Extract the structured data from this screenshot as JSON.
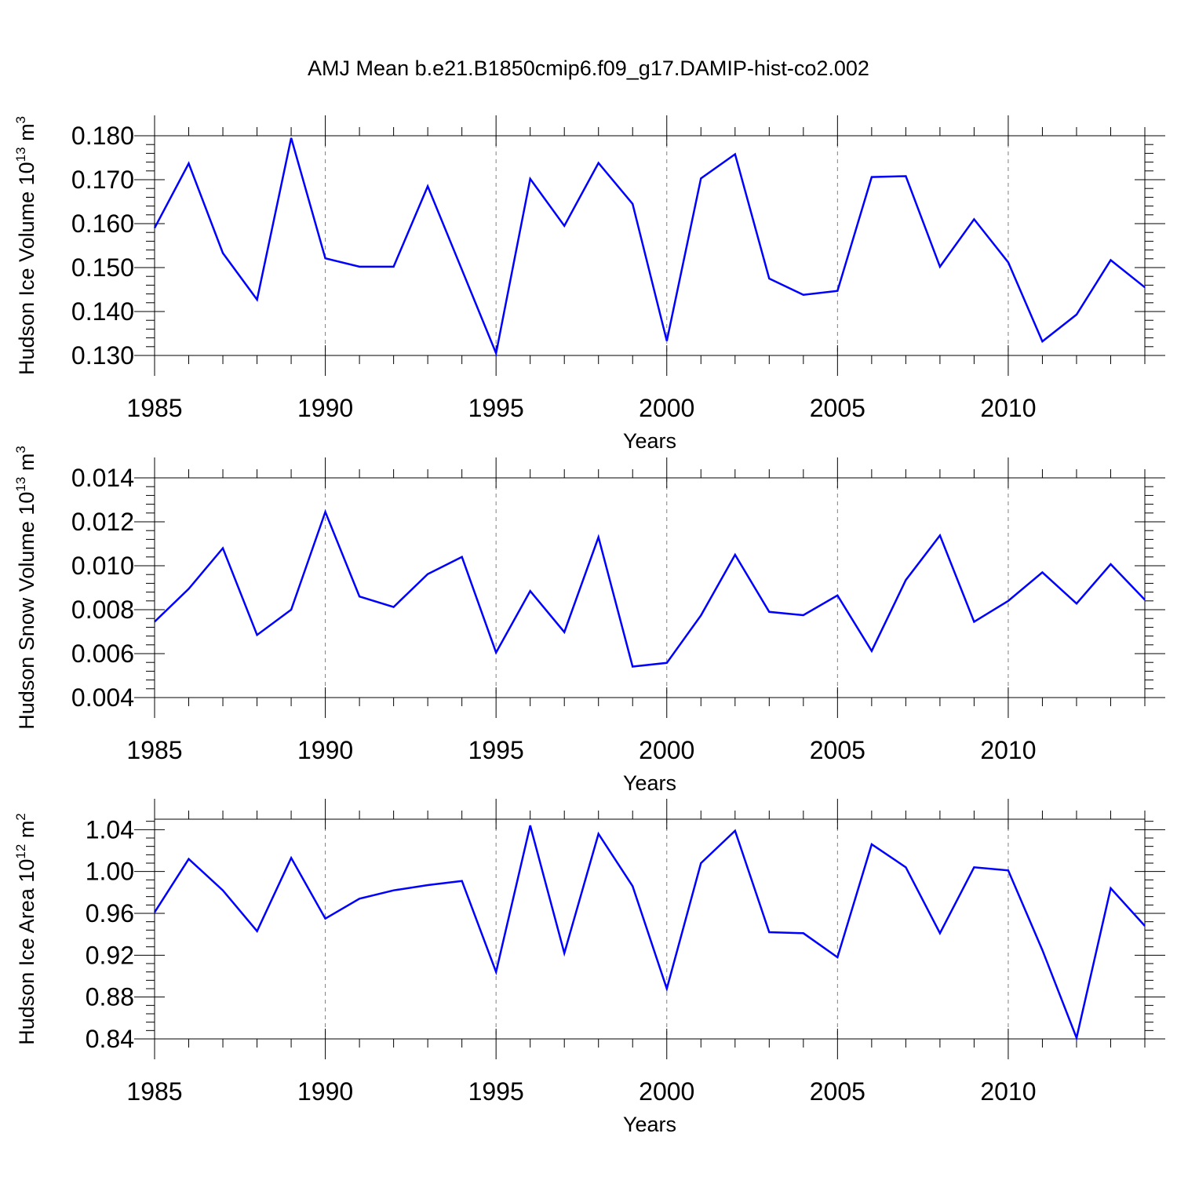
{
  "title": "AMJ Mean b.e21.B1850cmip6.f09_g17.DAMIP-hist-co2.002",
  "colors": {
    "line": "#0000ff",
    "axis": "#000000",
    "grid": "#808080"
  },
  "chart_data": [
    {
      "type": "line",
      "ylabel_main": "Hudson Ice Volume 10",
      "ylabel_exp": "13",
      "ylabel_unit": "m",
      "ylabel_unit_exp": "3",
      "xlabel": "Years",
      "xlim": [
        1985,
        2014
      ],
      "ylim": [
        0.13,
        0.18
      ],
      "x_ticks": [
        "1985",
        "1990",
        "1995",
        "2000",
        "2005",
        "2010"
      ],
      "y_ticks": [
        "0.130",
        "0.140",
        "0.150",
        "0.160",
        "0.170",
        "0.180"
      ],
      "grid": "vertical dashed at major x ticks",
      "series": [
        {
          "x": [
            1985,
            1986,
            1987,
            1988,
            1989,
            1990,
            1991,
            1992,
            1993,
            1994,
            1995,
            1996,
            1997,
            1998,
            1999,
            2000,
            2001,
            2002,
            2003,
            2004,
            2005,
            2006,
            2007,
            2008,
            2009,
            2010,
            2011,
            2012,
            2013,
            2014
          ],
          "values": [
            0.159,
            0.1737,
            0.1533,
            0.1427,
            0.1795,
            0.1521,
            0.1502,
            0.1502,
            0.1685,
            0.1495,
            0.1305,
            0.1702,
            0.1595,
            0.1738,
            0.1645,
            0.1333,
            0.1703,
            0.1758,
            0.1475,
            0.1438,
            0.1447,
            0.1706,
            0.1708,
            0.1502,
            0.161,
            0.1512,
            0.1332,
            0.1393,
            0.1517,
            0.1455
          ]
        }
      ]
    },
    {
      "type": "line",
      "ylabel_main": "Hudson Snow Volume 10",
      "ylabel_exp": "13",
      "ylabel_unit": "m",
      "ylabel_unit_exp": "3",
      "xlabel": "Years",
      "xlim": [
        1985,
        2014
      ],
      "ylim": [
        0.004,
        0.014
      ],
      "x_ticks": [
        "1985",
        "1990",
        "1995",
        "2000",
        "2005",
        "2010"
      ],
      "y_ticks": [
        "0.004",
        "0.006",
        "0.008",
        "0.010",
        "0.012",
        "0.014"
      ],
      "grid": "vertical dashed at major x ticks",
      "series": [
        {
          "x": [
            1985,
            1986,
            1987,
            1988,
            1989,
            1990,
            1991,
            1992,
            1993,
            1994,
            1995,
            1996,
            1997,
            1998,
            1999,
            2000,
            2001,
            2002,
            2003,
            2004,
            2005,
            2006,
            2007,
            2008,
            2009,
            2010,
            2011,
            2012,
            2013,
            2014
          ],
          "values": [
            0.00745,
            0.00895,
            0.0108,
            0.00685,
            0.008,
            0.01245,
            0.0086,
            0.00812,
            0.00962,
            0.0104,
            0.00605,
            0.00885,
            0.00698,
            0.0113,
            0.00541,
            0.00558,
            0.00774,
            0.0105,
            0.0079,
            0.00775,
            0.00865,
            0.00612,
            0.00935,
            0.01138,
            0.00745,
            0.0084,
            0.0097,
            0.00828,
            0.01007,
            0.00845
          ]
        }
      ]
    },
    {
      "type": "line",
      "ylabel_main": "Hudson Ice Area 10",
      "ylabel_exp": "12",
      "ylabel_unit": "m",
      "ylabel_unit_exp": "2",
      "xlabel": "Years",
      "xlim": [
        1985,
        2014
      ],
      "ylim": [
        0.84,
        1.05
      ],
      "x_ticks": [
        "1985",
        "1990",
        "1995",
        "2000",
        "2005",
        "2010"
      ],
      "y_ticks": [
        "0.84",
        "0.88",
        "0.92",
        "0.96",
        "1.00",
        "1.04"
      ],
      "grid": "vertical dashed at major x ticks",
      "series": [
        {
          "x": [
            1985,
            1986,
            1987,
            1988,
            1989,
            1990,
            1991,
            1992,
            1993,
            1994,
            1995,
            1996,
            1997,
            1998,
            1999,
            2000,
            2001,
            2002,
            2003,
            2004,
            2005,
            2006,
            2007,
            2008,
            2009,
            2010,
            2011,
            2012,
            2013,
            2014
          ],
          "values": [
            0.961,
            1.012,
            0.982,
            0.943,
            1.013,
            0.955,
            0.974,
            0.982,
            0.987,
            0.991,
            0.904,
            1.044,
            0.922,
            1.036,
            0.986,
            0.888,
            1.008,
            1.039,
            0.942,
            0.941,
            0.918,
            1.026,
            1.004,
            0.941,
            1.004,
            1.001,
            0.925,
            0.841,
            0.984,
            0.948
          ]
        }
      ]
    }
  ]
}
